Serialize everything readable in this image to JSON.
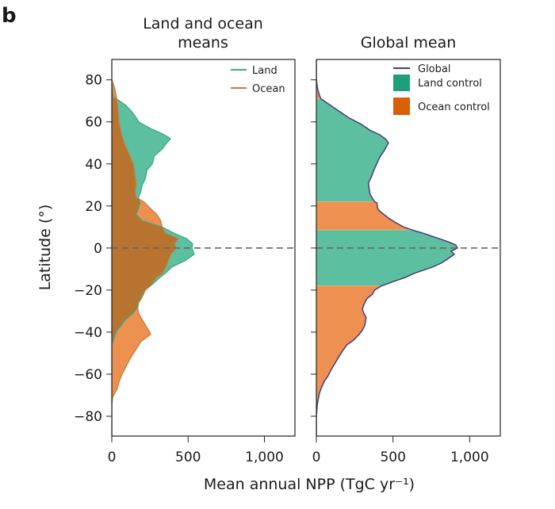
{
  "panel_label": "b",
  "chart_data": [
    {
      "type": "area",
      "title_lines": [
        "Land and ocean",
        "means"
      ],
      "xlabel": "Mean annual NPP (TgC yr⁻¹)",
      "ylabel": "Latitude (°)",
      "xlim": [
        0,
        1200
      ],
      "ylim": [
        -90,
        90
      ],
      "xticks": [
        0,
        500,
        1000
      ],
      "xtick_labels": [
        "0",
        "500",
        "1,000"
      ],
      "yticks": [
        80,
        60,
        40,
        20,
        0,
        -20,
        -40,
        -60,
        -80
      ],
      "ytick_labels": [
        "80",
        "60",
        "40",
        "20",
        "0",
        "−20",
        "−40",
        "−60",
        "−80"
      ],
      "reference_line": {
        "latitude": 0,
        "style": "dashed"
      },
      "legend": {
        "placement": "top-right",
        "entries": [
          "Land",
          "Ocean"
        ]
      },
      "series": [
        {
          "name": "Land",
          "color": "#3aaa8a",
          "fill": "#5bbfa0",
          "latitude": [
            80,
            74,
            71.5,
            71,
            68,
            65,
            62,
            60,
            57,
            54,
            52,
            50,
            47,
            44,
            40,
            37,
            33,
            30,
            27,
            24,
            21.5,
            19,
            16,
            13,
            10,
            7,
            4.5,
            2,
            0,
            -3,
            -6,
            -9,
            -12,
            -14,
            -17,
            -20,
            -23,
            -26,
            -29,
            -31,
            -34,
            -37,
            -39,
            -41,
            -44,
            -46,
            -50,
            -90
          ],
          "npp": [
            0,
            5,
            10,
            30,
            90,
            130,
            160,
            175,
            250,
            340,
            385,
            360,
            330,
            280,
            265,
            230,
            220,
            200,
            190,
            175,
            185,
            175,
            160,
            200,
            330,
            410,
            490,
            530,
            525,
            540,
            480,
            395,
            350,
            315,
            270,
            220,
            190,
            175,
            160,
            140,
            90,
            60,
            35,
            25,
            10,
            0,
            0,
            0
          ]
        },
        {
          "name": "Ocean",
          "color": "#c77a3a",
          "fill": "#ee9050",
          "latitude": [
            90,
            80,
            77,
            74,
            70,
            66,
            60,
            55,
            50,
            45,
            40,
            35,
            30,
            27,
            24,
            22,
            19,
            16,
            13,
            10,
            7,
            4.5,
            2,
            0,
            -3,
            -6,
            -9,
            -12,
            -14,
            -17,
            -20,
            -24,
            -26,
            -29,
            -31,
            -33,
            -36,
            -39,
            -41,
            -44.5,
            -48,
            -52,
            -56,
            -59.6,
            -63,
            -67,
            -71,
            -75,
            -90
          ],
          "npp": [
            0,
            0,
            15,
            25,
            35,
            40,
            45,
            60,
            80,
            110,
            140,
            150,
            160,
            150,
            160,
            210,
            250,
            295,
            320,
            330,
            350,
            435,
            410,
            420,
            385,
            370,
            355,
            330,
            290,
            260,
            220,
            195,
            175,
            170,
            175,
            190,
            215,
            240,
            255,
            190,
            160,
            125,
            95,
            70,
            50,
            35,
            5,
            0,
            0
          ]
        }
      ]
    },
    {
      "type": "area",
      "title": "Global mean",
      "xlabel": "Mean annual NPP (TgC yr⁻¹)",
      "xlim": [
        0,
        1200
      ],
      "ylim": [
        -90,
        90
      ],
      "xticks": [
        0,
        500,
        1000
      ],
      "xtick_labels": [
        "0",
        "500",
        "1,000"
      ],
      "yticks": [
        80,
        60,
        40,
        20,
        0,
        -20,
        -40,
        -60,
        -80
      ],
      "reference_line": {
        "latitude": 0,
        "style": "dashed"
      },
      "legend": {
        "placement": "top-right",
        "entries": [
          "Global",
          "Land control",
          "Ocean control"
        ]
      },
      "control_bands": [
        {
          "from": 71,
          "to": 90,
          "control": "Ocean control"
        },
        {
          "from": 22,
          "to": 71,
          "control": "Land control"
        },
        {
          "from": 8.5,
          "to": 22,
          "control": "Ocean control"
        },
        {
          "from": -18,
          "to": 8.5,
          "control": "Land control"
        },
        {
          "from": -90,
          "to": -18,
          "control": "Ocean control"
        }
      ],
      "colors": {
        "global_line": "#4a3a7a",
        "land_control": "#1f9e7a",
        "ocean_control": "#d95f02",
        "land_fill": "#5bbfa0",
        "ocean_fill": "#ee9050"
      },
      "series": [
        {
          "name": "Global",
          "latitude": [
            90,
            80,
            76,
            72.6,
            71,
            68,
            65,
            62,
            59,
            56,
            54,
            52,
            50,
            48,
            46,
            44,
            41,
            37,
            34,
            31,
            28,
            25.6,
            22,
            21.5,
            19,
            17.7,
            16,
            14,
            12,
            10,
            8.5,
            7,
            4.5,
            3,
            1.5,
            0,
            -1.5,
            -3,
            -5,
            -7,
            -9,
            -10.5,
            -12,
            -14,
            -16,
            -18,
            -20,
            -22,
            -24,
            -27,
            -29,
            -31,
            -33,
            -35,
            -37,
            -39,
            -41,
            -44,
            -46,
            -49,
            -52,
            -55,
            -58,
            -61,
            -63,
            -66,
            -69,
            -72,
            -75,
            -78,
            -80,
            -90
          ],
          "npp": [
            0,
            0,
            8,
            20,
            30,
            90,
            150,
            210,
            290,
            350,
            410,
            450,
            470,
            455,
            440,
            420,
            400,
            375,
            360,
            340,
            345,
            350,
            380,
            395,
            400,
            410,
            440,
            475,
            520,
            570,
            630,
            700,
            800,
            860,
            910,
            920,
            880,
            900,
            860,
            820,
            760,
            700,
            640,
            580,
            500,
            425,
            380,
            365,
            330,
            310,
            300,
            310,
            325,
            320,
            315,
            300,
            280,
            240,
            200,
            170,
            145,
            120,
            95,
            75,
            55,
            35,
            20,
            12,
            5,
            2,
            0,
            0
          ]
        }
      ]
    }
  ]
}
